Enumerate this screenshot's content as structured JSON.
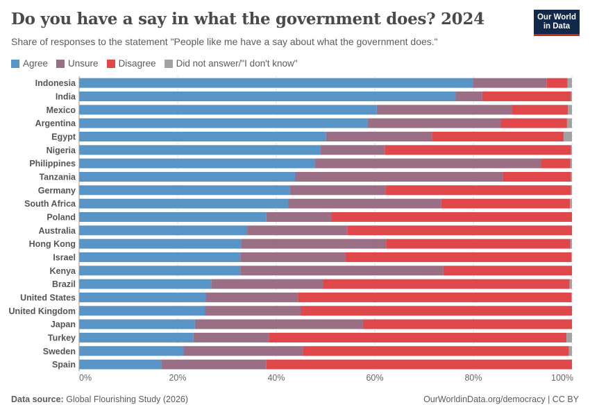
{
  "header": {
    "title": "Do you have a say in what the government does? 2024",
    "subtitle": "Share of responses to the statement \"People like me have a say about what the government does.\"",
    "logo": "Our World in Data"
  },
  "footer": {
    "source_label": "Data source:",
    "source": "Global Flourishing Study (2026)",
    "credit": "OurWorldinData.org/democracy | CC BY"
  },
  "chart_data": {
    "type": "bar",
    "orientation": "horizontal",
    "stacked": true,
    "title": "Do you have a say in what the government does? 2024",
    "xlim": [
      0,
      100
    ],
    "grid": true,
    "legend_position": "top",
    "xticks": [
      "0%",
      "20%",
      "40%",
      "60%",
      "80%",
      "100%"
    ],
    "categories": [
      "Indonesia",
      "India",
      "Mexico",
      "Argentina",
      "Egypt",
      "Nigeria",
      "Philippines",
      "Tanzania",
      "Germany",
      "South Africa",
      "Poland",
      "Australia",
      "Hong Kong",
      "Israel",
      "Kenya",
      "Brazil",
      "United States",
      "United Kingdom",
      "Japan",
      "Turkey",
      "Sweden",
      "Spain"
    ],
    "series": [
      {
        "name": "Agree",
        "color": "#5894c6",
        "values": [
          80.0,
          76.4,
          60.4,
          58.5,
          50.1,
          48.9,
          47.8,
          43.8,
          42.8,
          42.4,
          38.0,
          34.1,
          32.9,
          32.7,
          32.7,
          26.8,
          25.7,
          25.5,
          23.5,
          23.2,
          21.2,
          16.7
        ]
      },
      {
        "name": "Unsure",
        "color": "#9a6e84",
        "values": [
          14.9,
          5.4,
          27.4,
          27.0,
          21.5,
          13.1,
          46.0,
          42.2,
          19.4,
          31.1,
          13.2,
          20.3,
          29.4,
          21.3,
          41.2,
          22.7,
          18.7,
          19.5,
          34.1,
          15.3,
          24.2,
          21.3
        ]
      },
      {
        "name": "Disagree",
        "color": "#e0474b",
        "values": [
          4.2,
          18.0,
          11.4,
          13.5,
          26.7,
          37.8,
          5.9,
          13.8,
          37.6,
          26.1,
          48.8,
          45.6,
          37.4,
          45.9,
          26.1,
          50.0,
          55.5,
          55.0,
          42.4,
          60.4,
          54.0,
          62.0
        ]
      },
      {
        "name": "Did not answer/\"I don't know\"",
        "color": "#a2a2a2",
        "values": [
          0.9,
          0.2,
          0.8,
          1.0,
          1.7,
          0.2,
          0.3,
          0.2,
          0.2,
          0.4,
          0.0,
          0.0,
          0.3,
          0.1,
          0.0,
          0.5,
          0.1,
          0.0,
          0.0,
          1.1,
          0.6,
          0.0
        ]
      }
    ]
  }
}
